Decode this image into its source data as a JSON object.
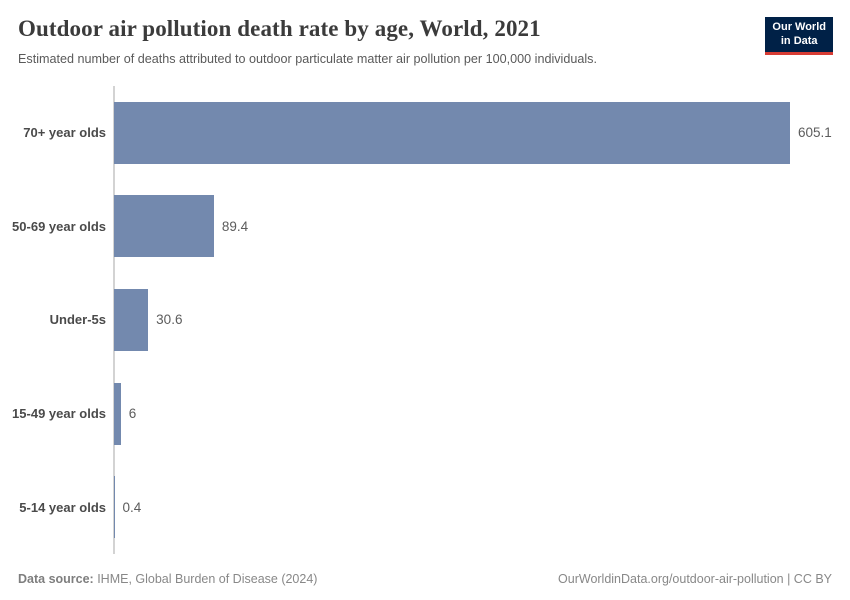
{
  "header": {
    "title": "Outdoor air pollution death rate by age, World, 2021",
    "subtitle": "Estimated number of deaths attributed to outdoor particulate matter air pollution per 100,000 individuals.",
    "logo": {
      "line1": "Our World",
      "line2": "in Data"
    }
  },
  "chart_data": {
    "type": "bar",
    "orientation": "horizontal",
    "title": "Outdoor air pollution death rate by age, World, 2021",
    "xlabel": "",
    "ylabel": "",
    "categories": [
      "70+ year olds",
      "50-69 year olds",
      "Under-5s",
      "15-49 year olds",
      "5-14 year olds"
    ],
    "values": [
      605.1,
      89.4,
      30.6,
      6,
      0.4
    ],
    "value_labels": [
      "605.1",
      "89.4",
      "30.6",
      "6",
      "0.4"
    ],
    "xlim": [
      0,
      605.1
    ],
    "grid": false,
    "legend": "none",
    "bar_color": "#7389ae",
    "axis_line_color": "#d3d3d3"
  },
  "footer": {
    "source_label": "Data source:",
    "source_text": " IHME, Global Burden of Disease (2024)",
    "link_text": "OurWorldinData.org/outdoor-air-pollution | CC BY"
  },
  "colors": {
    "title": "#3b3b3b",
    "subtitle": "#5a5a5a",
    "logo_bg": "#002147",
    "logo_underline": "#d73c34",
    "bar": "#7389ae"
  }
}
